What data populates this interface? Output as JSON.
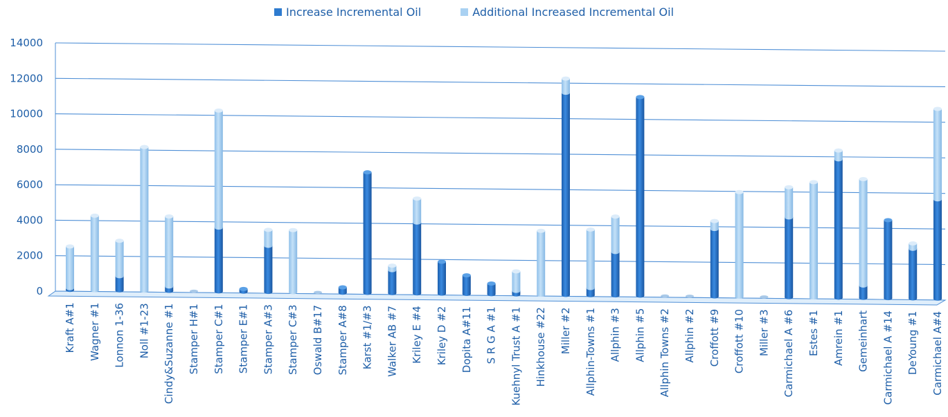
{
  "chart_data": {
    "type": "bar",
    "stacked": true,
    "legend_position": "top",
    "grid": true,
    "ylim": [
      0,
      14000
    ],
    "yticks": [
      0,
      2000,
      4000,
      6000,
      8000,
      10000,
      12000,
      14000
    ],
    "categories": [
      "Kraft A#1",
      "Wagner #1",
      "Lonnon 1-36",
      "Noll #1-23",
      "Cindy&Suzanne #1",
      "Stamper H#1",
      "Stamper C#1",
      "Stamper E#1",
      "Stamper A#3",
      "Stamper C#3",
      "Oswald B#17",
      "Stamper A#8",
      "Karst #1/#3",
      "Walker AB #7",
      "Kriley E #4",
      "Kriley D #2",
      "Dopita A#11",
      "S R G A #1",
      "Kuehnyl Trust A #1",
      "Hinkhouse #22",
      "Miller #2",
      "Allphin-Towns #1",
      "Allphin #3",
      "Allphin #5",
      "Allphin Towns #2",
      "Allphin #2",
      "Croffott #9",
      "Croffott #10",
      "Miller #3",
      "Carmichael A #6",
      "Estes #1",
      "Amrein #1",
      "Gemeinhart",
      "Carmichael A #14",
      "DeYoung #1",
      "Carmichael A#4"
    ],
    "series": [
      {
        "name": "Increase Incremental Oil",
        "color": "#2e7bcf",
        "values": [
          100,
          0,
          800,
          0,
          250,
          0,
          3600,
          150,
          2600,
          0,
          0,
          300,
          6800,
          1300,
          4000,
          1800,
          1050,
          600,
          200,
          0,
          11400,
          400,
          2450,
          11200,
          0,
          0,
          3800,
          0,
          0,
          4500,
          0,
          7800,
          700,
          4400,
          2800,
          5600
        ]
      },
      {
        "name": "Additional Increased Incremental Oil",
        "color": "#a9d1f2",
        "values": [
          2350,
          4200,
          2000,
          8100,
          3950,
          0,
          6600,
          0,
          900,
          3500,
          0,
          0,
          0,
          250,
          1350,
          0,
          0,
          0,
          1100,
          3600,
          800,
          3300,
          2000,
          0,
          0,
          0,
          450,
          5900,
          0,
          1700,
          6500,
          500,
          6000,
          0,
          300,
          5100
        ]
      }
    ]
  }
}
